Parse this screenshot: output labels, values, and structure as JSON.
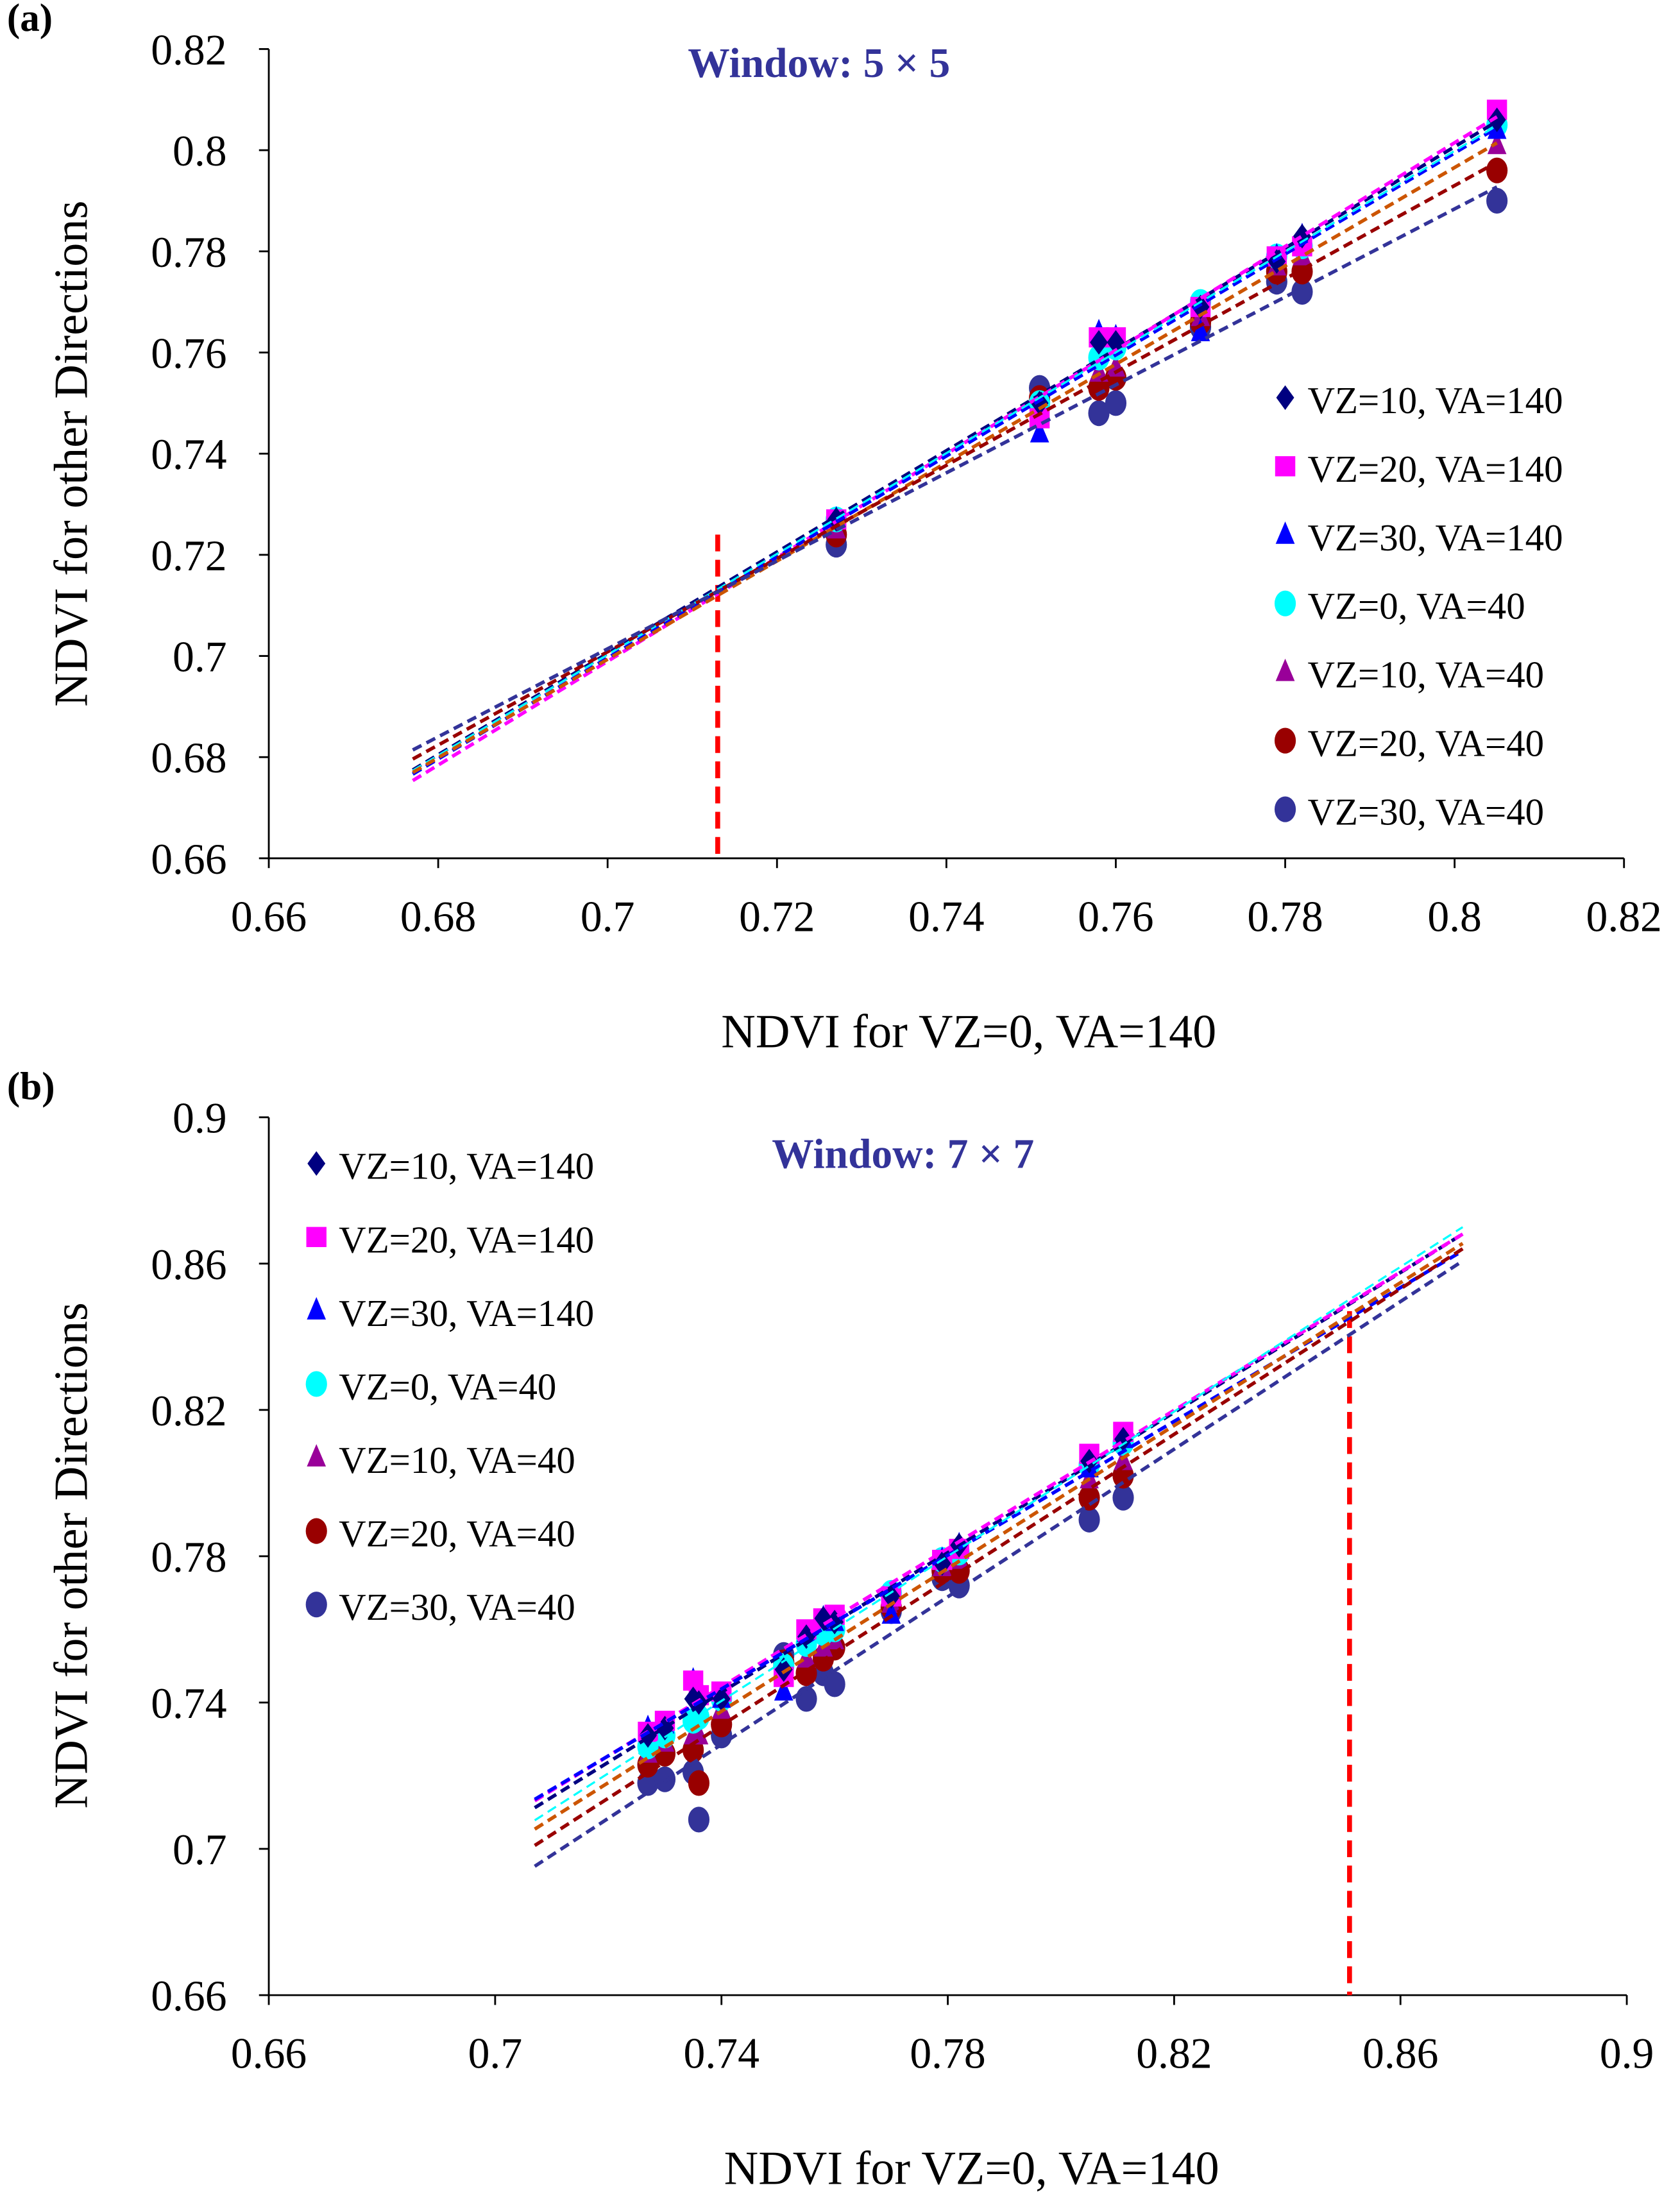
{
  "chart_data": [
    {
      "type": "scatter",
      "panel_label": "(a)",
      "title": "Window: 5 × 5",
      "xlabel": "NDVI for VZ=0, VA=140",
      "ylabel": "NDVI for other Directions",
      "xlim": [
        0.66,
        0.82
      ],
      "ylim": [
        0.66,
        0.82
      ],
      "xticks": [
        "0.66",
        "0.68",
        "0.7",
        "0.72",
        "0.74",
        "0.76",
        "0.78",
        "0.8",
        "0.82"
      ],
      "yticks": [
        "0.66",
        "0.68",
        "0.7",
        "0.72",
        "0.74",
        "0.76",
        "0.78",
        "0.8",
        "0.82"
      ],
      "legend_position": "right",
      "trend_range": [
        0.677,
        0.805
      ],
      "threshold_line": {
        "x": 0.713,
        "y_top": 0.724,
        "color": "#ff0000"
      },
      "x": [
        0.727,
        0.751,
        0.758,
        0.76,
        0.77,
        0.779,
        0.782,
        0.805
      ],
      "series": [
        {
          "name": "VZ=10, VA=140",
          "marker": "diamond",
          "color": "#000080",
          "values": [
            0.727,
            0.75,
            0.762,
            0.762,
            0.769,
            0.778,
            0.783,
            0.806
          ]
        },
        {
          "name": "VZ=20, VA=140",
          "marker": "square",
          "color": "#ff00ff",
          "values": [
            0.727,
            0.747,
            0.763,
            0.763,
            0.769,
            0.779,
            0.781,
            0.808
          ]
        },
        {
          "name": "VZ=30, VA=140",
          "marker": "triangle",
          "color": "#0000ff",
          "values": [
            0.727,
            0.744,
            0.764,
            0.763,
            0.764,
            0.779,
            0.783,
            0.804
          ]
        },
        {
          "name": "VZ=0, VA=40",
          "marker": "circle",
          "color": "#00ffff",
          "values": [
            0.727,
            0.75,
            0.759,
            0.761,
            0.77,
            0.779,
            0.781,
            0.805
          ]
        },
        {
          "name": "VZ=10, VA=40",
          "marker": "triangle",
          "color": "#990099",
          "values": [
            0.725,
            0.75,
            0.756,
            0.757,
            0.767,
            0.777,
            0.779,
            0.801
          ]
        },
        {
          "name": "VZ=20, VA=40",
          "marker": "circle",
          "color": "#990000",
          "values": [
            0.724,
            0.751,
            0.753,
            0.755,
            0.766,
            0.776,
            0.776,
            0.796
          ]
        },
        {
          "name": "VZ=30, VA=40",
          "marker": "circle",
          "color": "#333399",
          "values": [
            0.722,
            0.753,
            0.748,
            0.75,
            0.765,
            0.774,
            0.772,
            0.79
          ]
        }
      ]
    },
    {
      "type": "scatter",
      "panel_label": "(b)",
      "title": "Window: 7 × 7",
      "xlabel": "NDVI for VZ=0, VA=140",
      "ylabel": "NDVI for other Directions",
      "xlim": [
        0.66,
        0.9
      ],
      "ylim": [
        0.66,
        0.9
      ],
      "xticks": [
        "0.66",
        "0.7",
        "0.74",
        "0.78",
        "0.82",
        "0.86",
        "0.9"
      ],
      "yticks": [
        "0.66",
        "0.7",
        "0.74",
        "0.78",
        "0.82",
        "0.86",
        "0.9"
      ],
      "legend_position": "top-left",
      "trend_range": [
        0.707,
        0.871
      ],
      "threshold_line": {
        "x": 0.851,
        "y_top": 0.847,
        "color": "#ff0000"
      },
      "x": [
        0.727,
        0.73,
        0.735,
        0.736,
        0.74,
        0.751,
        0.755,
        0.758,
        0.76,
        0.77,
        0.779,
        0.782,
        0.805,
        0.811
      ],
      "series": [
        {
          "name": "VZ=10, VA=140",
          "marker": "diamond",
          "color": "#000080",
          "values": [
            0.731,
            0.733,
            0.741,
            0.74,
            0.741,
            0.749,
            0.758,
            0.763,
            0.762,
            0.769,
            0.778,
            0.783,
            0.806,
            0.812
          ]
        },
        {
          "name": "VZ=20, VA=140",
          "marker": "square",
          "color": "#ff00ff",
          "values": [
            0.732,
            0.735,
            0.746,
            0.742,
            0.743,
            0.747,
            0.76,
            0.763,
            0.764,
            0.769,
            0.779,
            0.782,
            0.808,
            0.814
          ]
        },
        {
          "name": "VZ=30, VA=140",
          "marker": "triangle",
          "color": "#0000ff",
          "values": [
            0.733,
            0.734,
            0.746,
            0.744,
            0.741,
            0.743,
            0.759,
            0.763,
            0.762,
            0.764,
            0.779,
            0.783,
            0.804,
            0.812
          ]
        },
        {
          "name": "VZ=0, VA=40",
          "marker": "circle",
          "color": "#00ffff",
          "values": [
            0.728,
            0.731,
            0.735,
            0.736,
            0.741,
            0.75,
            0.756,
            0.759,
            0.76,
            0.77,
            0.779,
            0.781,
            0.805,
            0.811
          ]
        },
        {
          "name": "VZ=10, VA=40",
          "marker": "triangle",
          "color": "#990099",
          "values": [
            0.726,
            0.729,
            0.731,
            0.731,
            0.738,
            0.75,
            0.752,
            0.755,
            0.757,
            0.767,
            0.777,
            0.779,
            0.801,
            0.806
          ]
        },
        {
          "name": "VZ=20, VA=40",
          "marker": "circle",
          "color": "#990000",
          "values": [
            0.723,
            0.726,
            0.727,
            0.718,
            0.734,
            0.751,
            0.748,
            0.752,
            0.755,
            0.766,
            0.776,
            0.776,
            0.796,
            0.802
          ]
        },
        {
          "name": "VZ=30, VA=40",
          "marker": "circle",
          "color": "#333399",
          "values": [
            0.718,
            0.719,
            0.721,
            0.708,
            0.731,
            0.753,
            0.741,
            0.748,
            0.745,
            0.765,
            0.774,
            0.772,
            0.79,
            0.796
          ]
        }
      ]
    }
  ]
}
